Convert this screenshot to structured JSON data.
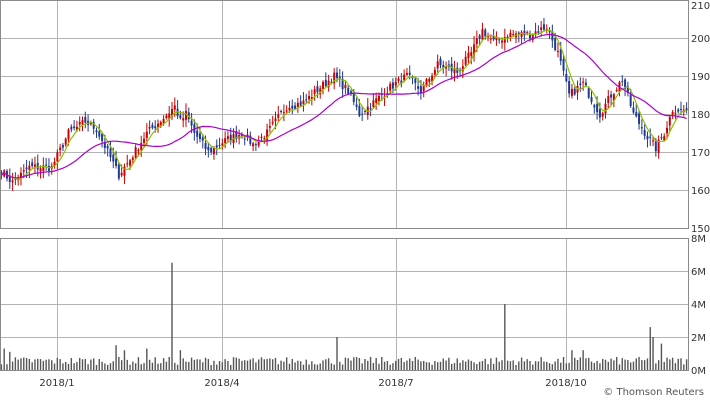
{
  "chart_data": [
    {
      "type": "candlestick",
      "panel": "price",
      "x_ticks": [
        "2018/1",
        "2018/4",
        "2018/7",
        "2018/10"
      ],
      "y_ticks": [
        "150",
        "160",
        "170",
        "180",
        "190",
        "200",
        "210"
      ],
      "ylim": [
        150,
        210
      ],
      "grid": true,
      "colors": {
        "up": "#cc0000",
        "down": "#1f3a93",
        "ma_short": "#8fbf00",
        "ma_long": "#aa00cc"
      },
      "price_anchors": [
        {
          "bar": 0,
          "close": 165
        },
        {
          "bar": 4,
          "close": 162
        },
        {
          "bar": 10,
          "close": 166
        },
        {
          "bar": 18,
          "close": 166
        },
        {
          "bar": 24,
          "close": 175
        },
        {
          "bar": 30,
          "close": 178
        },
        {
          "bar": 34,
          "close": 176
        },
        {
          "bar": 38,
          "close": 170
        },
        {
          "bar": 42,
          "close": 164
        },
        {
          "bar": 46,
          "close": 168
        },
        {
          "bar": 52,
          "close": 175
        },
        {
          "bar": 58,
          "close": 179
        },
        {
          "bar": 62,
          "close": 182
        },
        {
          "bar": 64,
          "close": 178
        },
        {
          "bar": 66,
          "close": 180
        },
        {
          "bar": 69,
          "close": 175
        },
        {
          "bar": 74,
          "close": 170
        },
        {
          "bar": 80,
          "close": 173
        },
        {
          "bar": 86,
          "close": 175
        },
        {
          "bar": 90,
          "close": 172
        },
        {
          "bar": 95,
          "close": 175
        },
        {
          "bar": 102,
          "close": 182
        },
        {
          "bar": 108,
          "close": 183
        },
        {
          "bar": 114,
          "close": 187
        },
        {
          "bar": 119,
          "close": 190
        },
        {
          "bar": 124,
          "close": 186
        },
        {
          "bar": 128,
          "close": 180
        },
        {
          "bar": 133,
          "close": 183
        },
        {
          "bar": 139,
          "close": 187
        },
        {
          "bar": 145,
          "close": 190
        },
        {
          "bar": 150,
          "close": 186
        },
        {
          "bar": 156,
          "close": 193
        },
        {
          "bar": 163,
          "close": 191
        },
        {
          "bar": 168,
          "close": 196
        },
        {
          "bar": 172,
          "close": 202
        },
        {
          "bar": 176,
          "close": 199
        },
        {
          "bar": 182,
          "close": 201
        },
        {
          "bar": 189,
          "close": 201
        },
        {
          "bar": 195,
          "close": 203
        },
        {
          "bar": 199,
          "close": 196
        },
        {
          "bar": 203,
          "close": 185
        },
        {
          "bar": 208,
          "close": 188
        },
        {
          "bar": 214,
          "close": 180
        },
        {
          "bar": 218,
          "close": 185
        },
        {
          "bar": 222,
          "close": 189
        },
        {
          "bar": 226,
          "close": 180
        },
        {
          "bar": 231,
          "close": 174
        },
        {
          "bar": 234,
          "close": 171
        },
        {
          "bar": 237,
          "close": 175
        },
        {
          "bar": 240,
          "close": 181
        }
      ]
    },
    {
      "type": "bar",
      "panel": "volume",
      "y_ticks": [
        "0M",
        "2M",
        "4M",
        "6M",
        "8M"
      ],
      "ylim": [
        0,
        8
      ],
      "unit": "M",
      "grid": true,
      "baseline_volume": 0.55,
      "spikes": [
        {
          "bar": 1,
          "volume": 1.3
        },
        {
          "bar": 3,
          "volume": 1.1
        },
        {
          "bar": 41,
          "volume": 1.5
        },
        {
          "bar": 44,
          "volume": 1.2
        },
        {
          "bar": 52,
          "volume": 1.3
        },
        {
          "bar": 61,
          "volume": 6.5
        },
        {
          "bar": 64,
          "volume": 1.2
        },
        {
          "bar": 120,
          "volume": 2.0
        },
        {
          "bar": 180,
          "volume": 4.0
        },
        {
          "bar": 204,
          "volume": 1.2
        },
        {
          "bar": 208,
          "volume": 1.2
        },
        {
          "bar": 232,
          "volume": 2.6
        },
        {
          "bar": 233,
          "volume": 2.0
        },
        {
          "bar": 236,
          "volume": 1.6
        }
      ]
    }
  ],
  "credit": "© Thomson Reuters"
}
